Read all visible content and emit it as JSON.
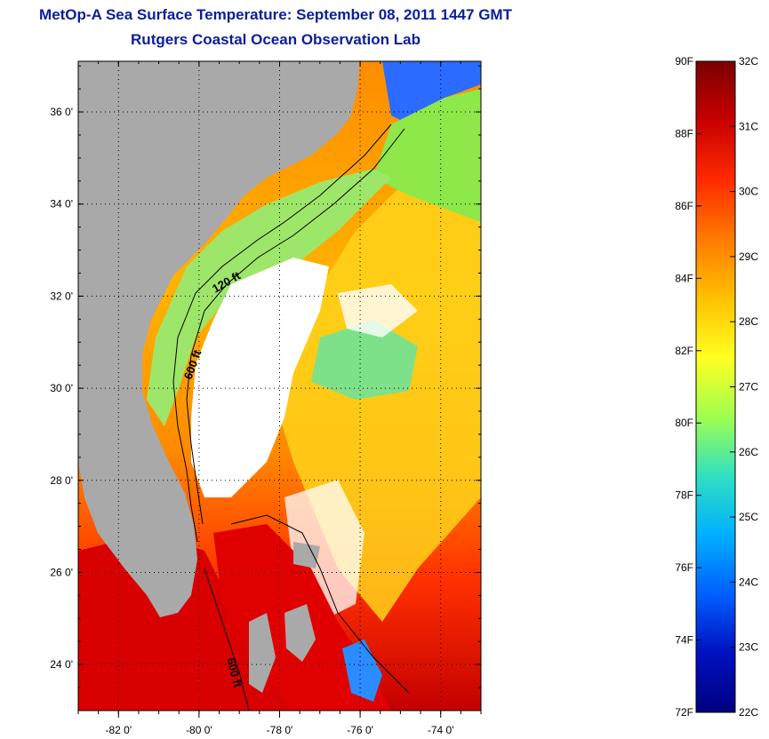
{
  "header": {
    "title": "MetOp-A Sea Surface Temperature:  September 08, 2011 1447 GMT",
    "subtitle": "Rutgers Coastal Ocean Observation Lab"
  },
  "map": {
    "lat_ticks": [
      {
        "value": 24,
        "label": "24 0'"
      },
      {
        "value": 26,
        "label": "26 0'"
      },
      {
        "value": 28,
        "label": "28 0'"
      },
      {
        "value": 30,
        "label": "30 0'"
      },
      {
        "value": 32,
        "label": "32 0'"
      },
      {
        "value": 34,
        "label": "34 0'"
      },
      {
        "value": 36,
        "label": "36 0'"
      }
    ],
    "lon_ticks": [
      {
        "value": -82,
        "label": "-82 0'"
      },
      {
        "value": -80,
        "label": "-80 0'"
      },
      {
        "value": -78,
        "label": "-78 0'"
      },
      {
        "value": -76,
        "label": "-76 0'"
      },
      {
        "value": -74,
        "label": "-74 0'"
      }
    ],
    "lat_range": [
      23,
      37.1
    ],
    "lon_range": [
      -83,
      -73
    ],
    "grid": true,
    "land_color": "#a9a9a9",
    "contour_labels": [
      {
        "text": "120 ft"
      },
      {
        "text": "600 ft"
      },
      {
        "text": "600 ft"
      }
    ]
  },
  "colorbar": {
    "fahrenheit_labels": [
      "90F",
      "88F",
      "86F",
      "84F",
      "82F",
      "80F",
      "78F",
      "76F",
      "74F",
      "72F"
    ],
    "celsius_labels": [
      "32C",
      "31C",
      "30C",
      "29C",
      "28C",
      "27C",
      "26C",
      "25C",
      "24C",
      "23C",
      "22C"
    ],
    "colors": [
      "#7a0000",
      "#c80000",
      "#ff2a00",
      "#ff7a00",
      "#ffc000",
      "#ffff20",
      "#a0ff50",
      "#30e0c0",
      "#00b0ff",
      "#0060ff",
      "#0010c0",
      "#000080"
    ]
  }
}
